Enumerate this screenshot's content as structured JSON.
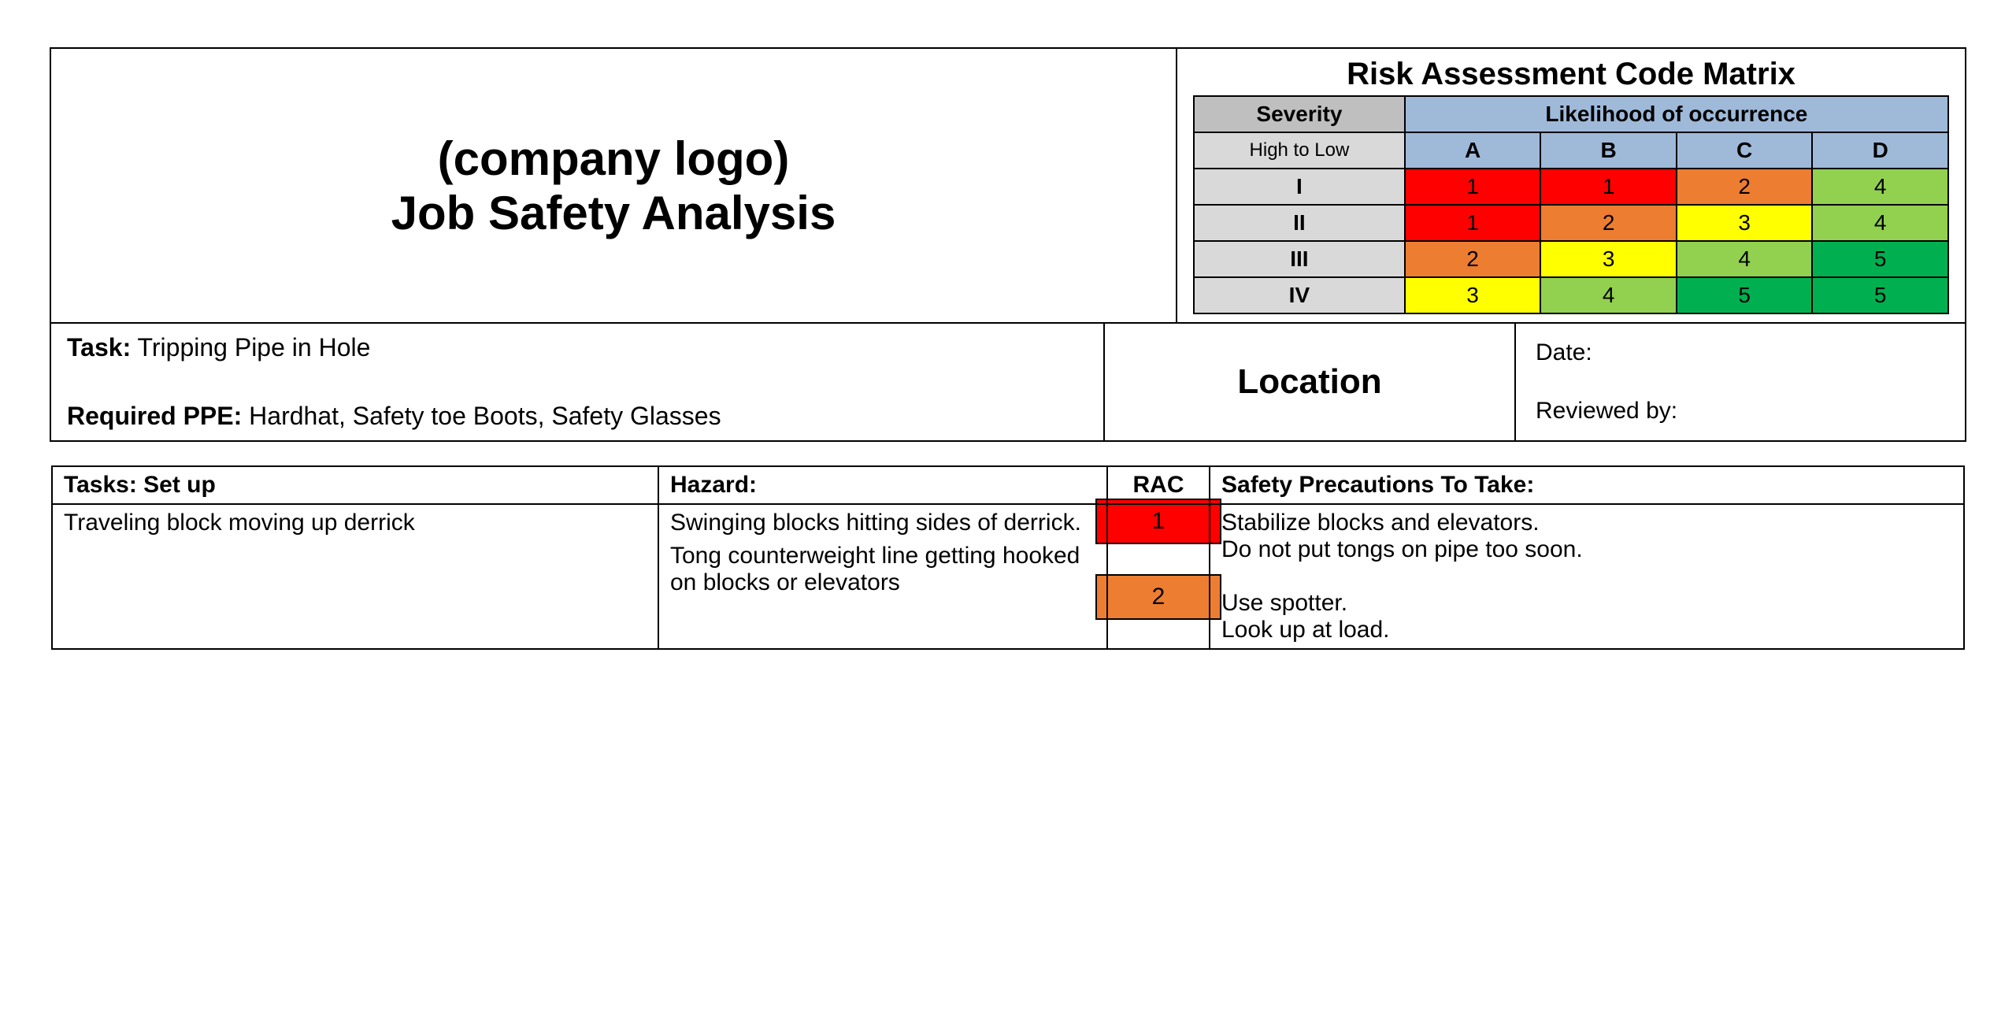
{
  "header": {
    "logo_line1": "(company logo)",
    "logo_line2": "Job Safety Analysis"
  },
  "matrix": {
    "title": "Risk Assessment Code Matrix",
    "severity_header": "Severity",
    "severity_sub": "High to Low",
    "likelihood_header": "Likelihood of occurrence",
    "likelihood_cols": [
      "A",
      "B",
      "C",
      "D"
    ],
    "severity_rows": [
      "I",
      "II",
      "III",
      "IV"
    ],
    "cells": [
      [
        {
          "v": "1",
          "c": "#ff0000"
        },
        {
          "v": "1",
          "c": "#ff0000"
        },
        {
          "v": "2",
          "c": "#ed7d31"
        },
        {
          "v": "4",
          "c": "#92d050"
        }
      ],
      [
        {
          "v": "1",
          "c": "#ff0000"
        },
        {
          "v": "2",
          "c": "#ed7d31"
        },
        {
          "v": "3",
          "c": "#ffff00"
        },
        {
          "v": "4",
          "c": "#92d050"
        }
      ],
      [
        {
          "v": "2",
          "c": "#ed7d31"
        },
        {
          "v": "3",
          "c": "#ffff00"
        },
        {
          "v": "4",
          "c": "#92d050"
        },
        {
          "v": "5",
          "c": "#00b050"
        }
      ],
      [
        {
          "v": "3",
          "c": "#ffff00"
        },
        {
          "v": "4",
          "c": "#92d050"
        },
        {
          "v": "5",
          "c": "#00b050"
        },
        {
          "v": "5",
          "c": "#00b050"
        }
      ]
    ],
    "header_bg": "#9fb9d9",
    "severity_header_bg": "#bfbfbf",
    "severity_cell_bg": "#d9d9d9"
  },
  "info": {
    "task_label": "Task:",
    "task_value": "Tripping Pipe in Hole",
    "ppe_label": "Required PPE:",
    "ppe_value": "Hardhat, Safety toe Boots, Safety Glasses",
    "location_label": "Location",
    "date_label": "Date:",
    "reviewed_label": "Reviewed by:"
  },
  "tasks_table": {
    "headers": {
      "task": "Tasks: Set up",
      "hazard": "Hazard:",
      "rac": "RAC",
      "precautions": "Safety Precautions To Take:"
    },
    "row": {
      "task": "Traveling block moving up derrick",
      "hazards": [
        "Swinging blocks hitting sides of derrick.",
        "Tong counterweight line getting hooked on blocks or elevators"
      ],
      "rac": [
        {
          "v": "1",
          "c": "#ff0000"
        },
        {
          "v": "2",
          "c": "#ed7d31"
        }
      ],
      "precautions": [
        "Stabilize blocks and elevators.",
        "Do not put tongs on pipe too soon.",
        "",
        "Use spotter.",
        "Look up at load."
      ]
    }
  }
}
